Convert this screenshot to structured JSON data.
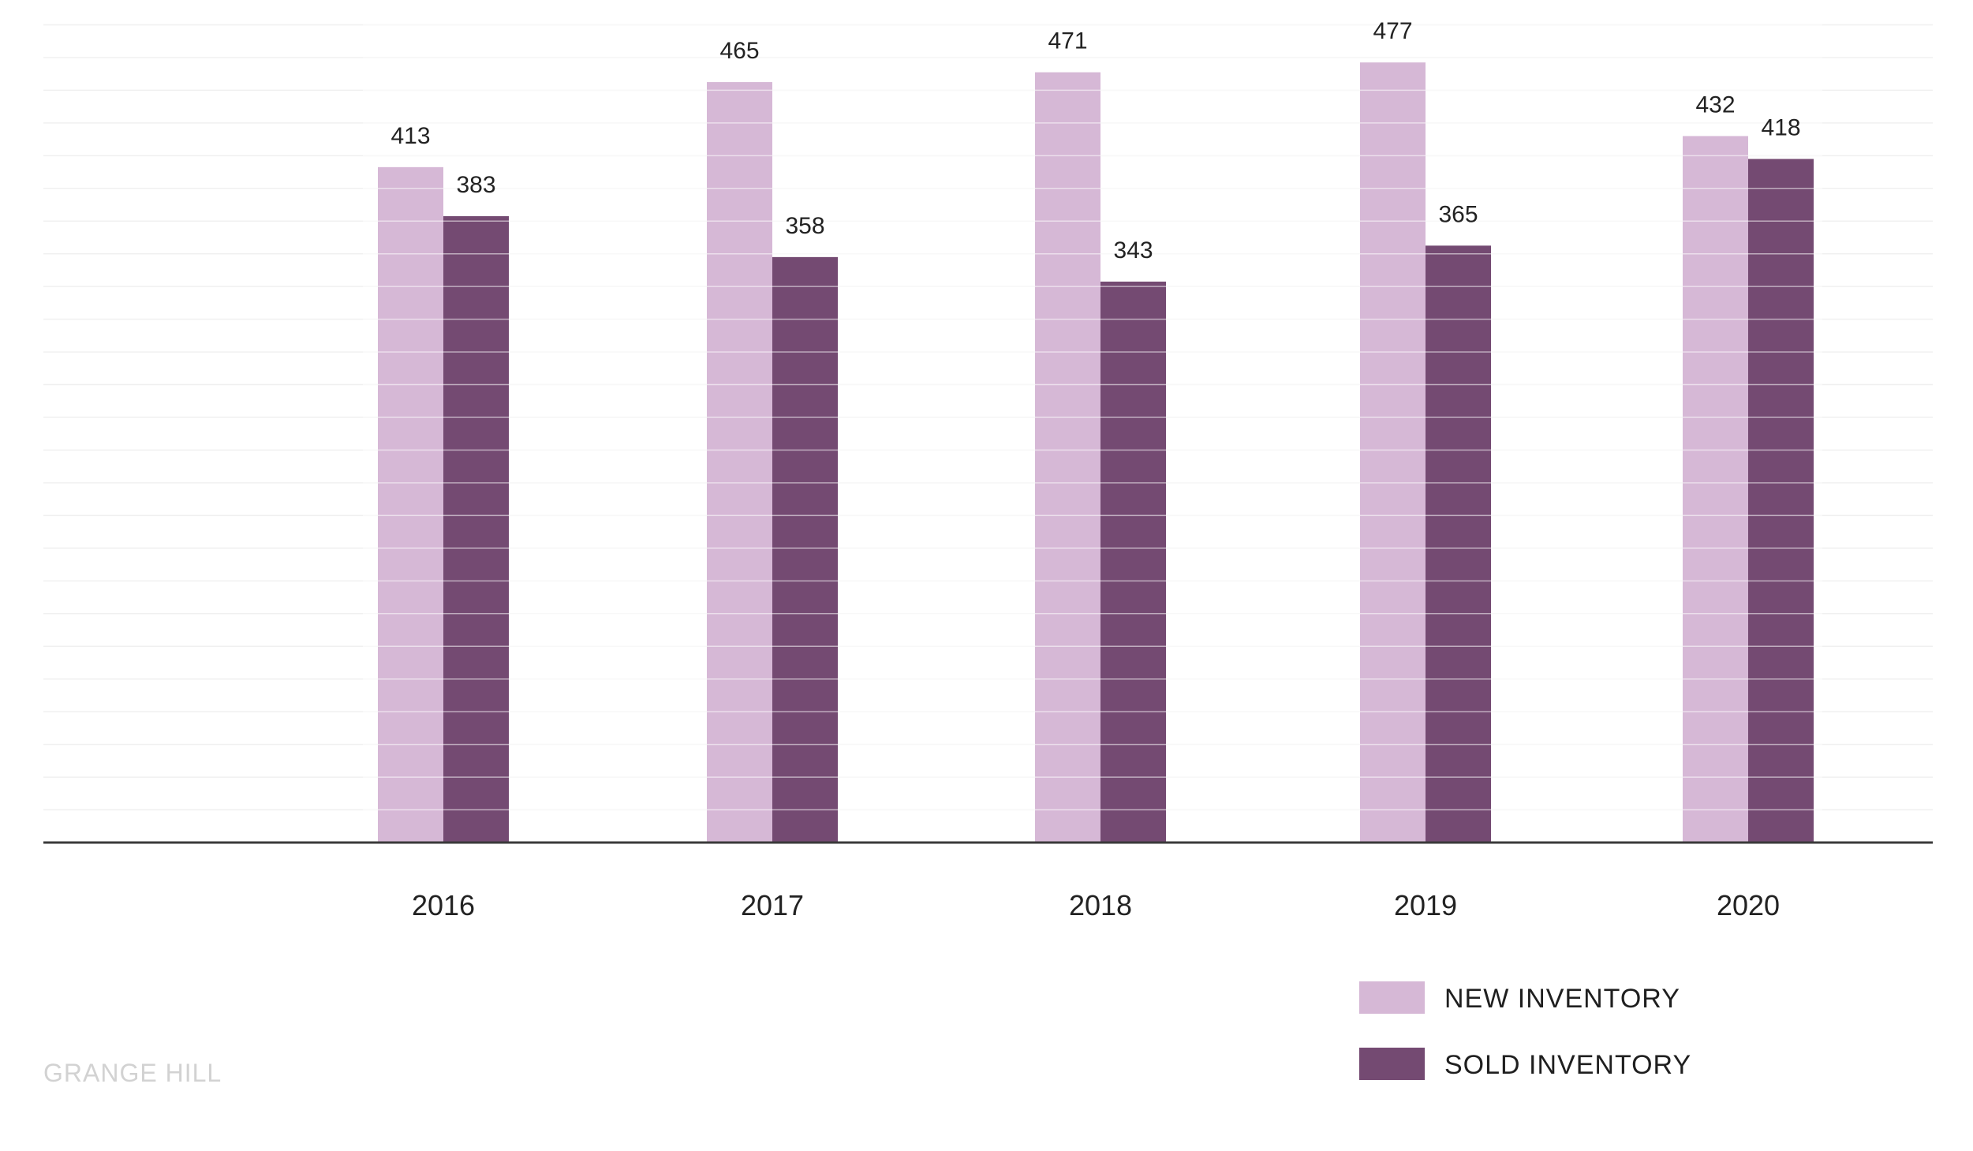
{
  "brand": {
    "text": "GRANGE HILL",
    "color": "#d2d2d2"
  },
  "chart_data": {
    "type": "bar",
    "categories": [
      "2016",
      "2017",
      "2018",
      "2019",
      "2020"
    ],
    "series": [
      {
        "name": "NEW INVENTORY",
        "values": [
          413,
          465,
          471,
          477,
          432
        ],
        "color": "#d6b8d6"
      },
      {
        "name": "SOLD INVENTORY",
        "values": [
          383,
          358,
          343,
          365,
          418
        ],
        "color": "#744a72"
      }
    ],
    "title": "",
    "xlabel": "",
    "ylabel": "",
    "ylim": [
      0,
      500
    ],
    "grid": true,
    "gridline_step": 20,
    "legend_position": "bottom-right",
    "data_labels": true
  }
}
